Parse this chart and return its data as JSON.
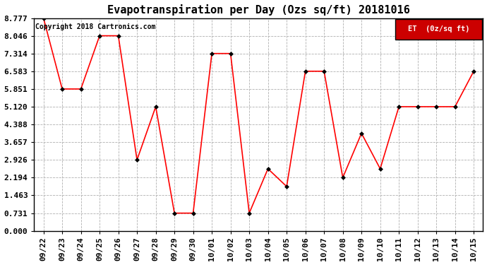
{
  "title": "Evapotranspiration per Day (Ozs sq/ft) 20181016",
  "copyright": "Copyright 2018 Cartronics.com",
  "legend_label": "ET  (0z/sq ft)",
  "x_labels": [
    "09/22",
    "09/23",
    "09/24",
    "09/25",
    "09/26",
    "09/27",
    "09/28",
    "09/29",
    "09/30",
    "10/01",
    "10/02",
    "10/03",
    "10/04",
    "10/05",
    "10/06",
    "10/07",
    "10/08",
    "10/09",
    "10/10",
    "10/11",
    "10/12",
    "10/13",
    "10/14",
    "10/15"
  ],
  "y_values": [
    8.777,
    5.851,
    5.851,
    8.046,
    8.046,
    2.926,
    5.12,
    0.731,
    0.731,
    7.314,
    7.314,
    0.731,
    2.56,
    1.829,
    6.583,
    6.583,
    2.194,
    4.023,
    2.56,
    5.12,
    5.12,
    5.12,
    5.12,
    6.583
  ],
  "y_ticks": [
    0.0,
    0.731,
    1.463,
    2.194,
    2.926,
    3.657,
    4.388,
    5.12,
    5.851,
    6.583,
    7.314,
    8.046,
    8.777
  ],
  "ylim": [
    0.0,
    8.777
  ],
  "line_color": "#ff0000",
  "marker": "D",
  "marker_size": 3,
  "marker_color": "#000000",
  "background_color": "#ffffff",
  "grid_color": "#b0b0b0",
  "legend_bg": "#cc0000",
  "legend_text_color": "#ffffff",
  "title_fontsize": 11,
  "copyright_fontsize": 7,
  "tick_fontsize": 8
}
